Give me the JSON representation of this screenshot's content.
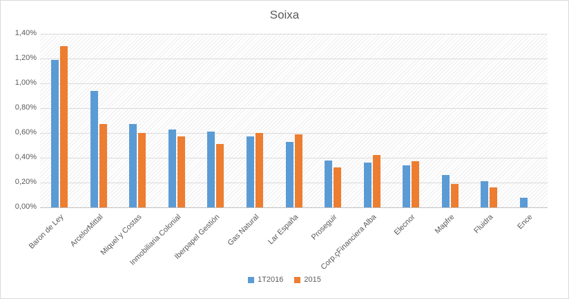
{
  "chart_data": {
    "type": "bar",
    "title": "Soixa",
    "categories": [
      "Baron de Ley",
      "ArcelorMittal",
      "Miquel y Costas",
      "Inmobiliaria Colonial",
      "Iberpapel Gestión",
      "Gas Natural",
      "Lar España",
      "Proseguir",
      "Corp.çFinanciera Alba",
      "Elecnor",
      "Mapfre",
      "Fluidra",
      "Ence"
    ],
    "series": [
      {
        "name": "1T2016",
        "color": "#5B9BD5",
        "values": [
          1.19,
          0.94,
          0.67,
          0.63,
          0.61,
          0.57,
          0.53,
          0.38,
          0.36,
          0.34,
          0.26,
          0.21,
          0.08
        ]
      },
      {
        "name": "2015",
        "color": "#ED7D31",
        "values": [
          1.3,
          0.67,
          0.6,
          0.57,
          0.51,
          0.6,
          0.59,
          0.32,
          0.42,
          0.37,
          0.19,
          0.16,
          0
        ]
      }
    ],
    "ylim": [
      0,
      1.4
    ],
    "ytick_step": 0.2,
    "ytick_labels": [
      "0,00%",
      "0,20%",
      "0,40%",
      "0,60%",
      "0,80%",
      "1,00%",
      "1,20%",
      "1,40%"
    ],
    "grid": true,
    "legend_position": "bottom",
    "colors": {
      "text": "#595959",
      "gridline": "#d9d9d9",
      "axis": "#bfbfbf",
      "border": "#d9d9d9"
    }
  }
}
